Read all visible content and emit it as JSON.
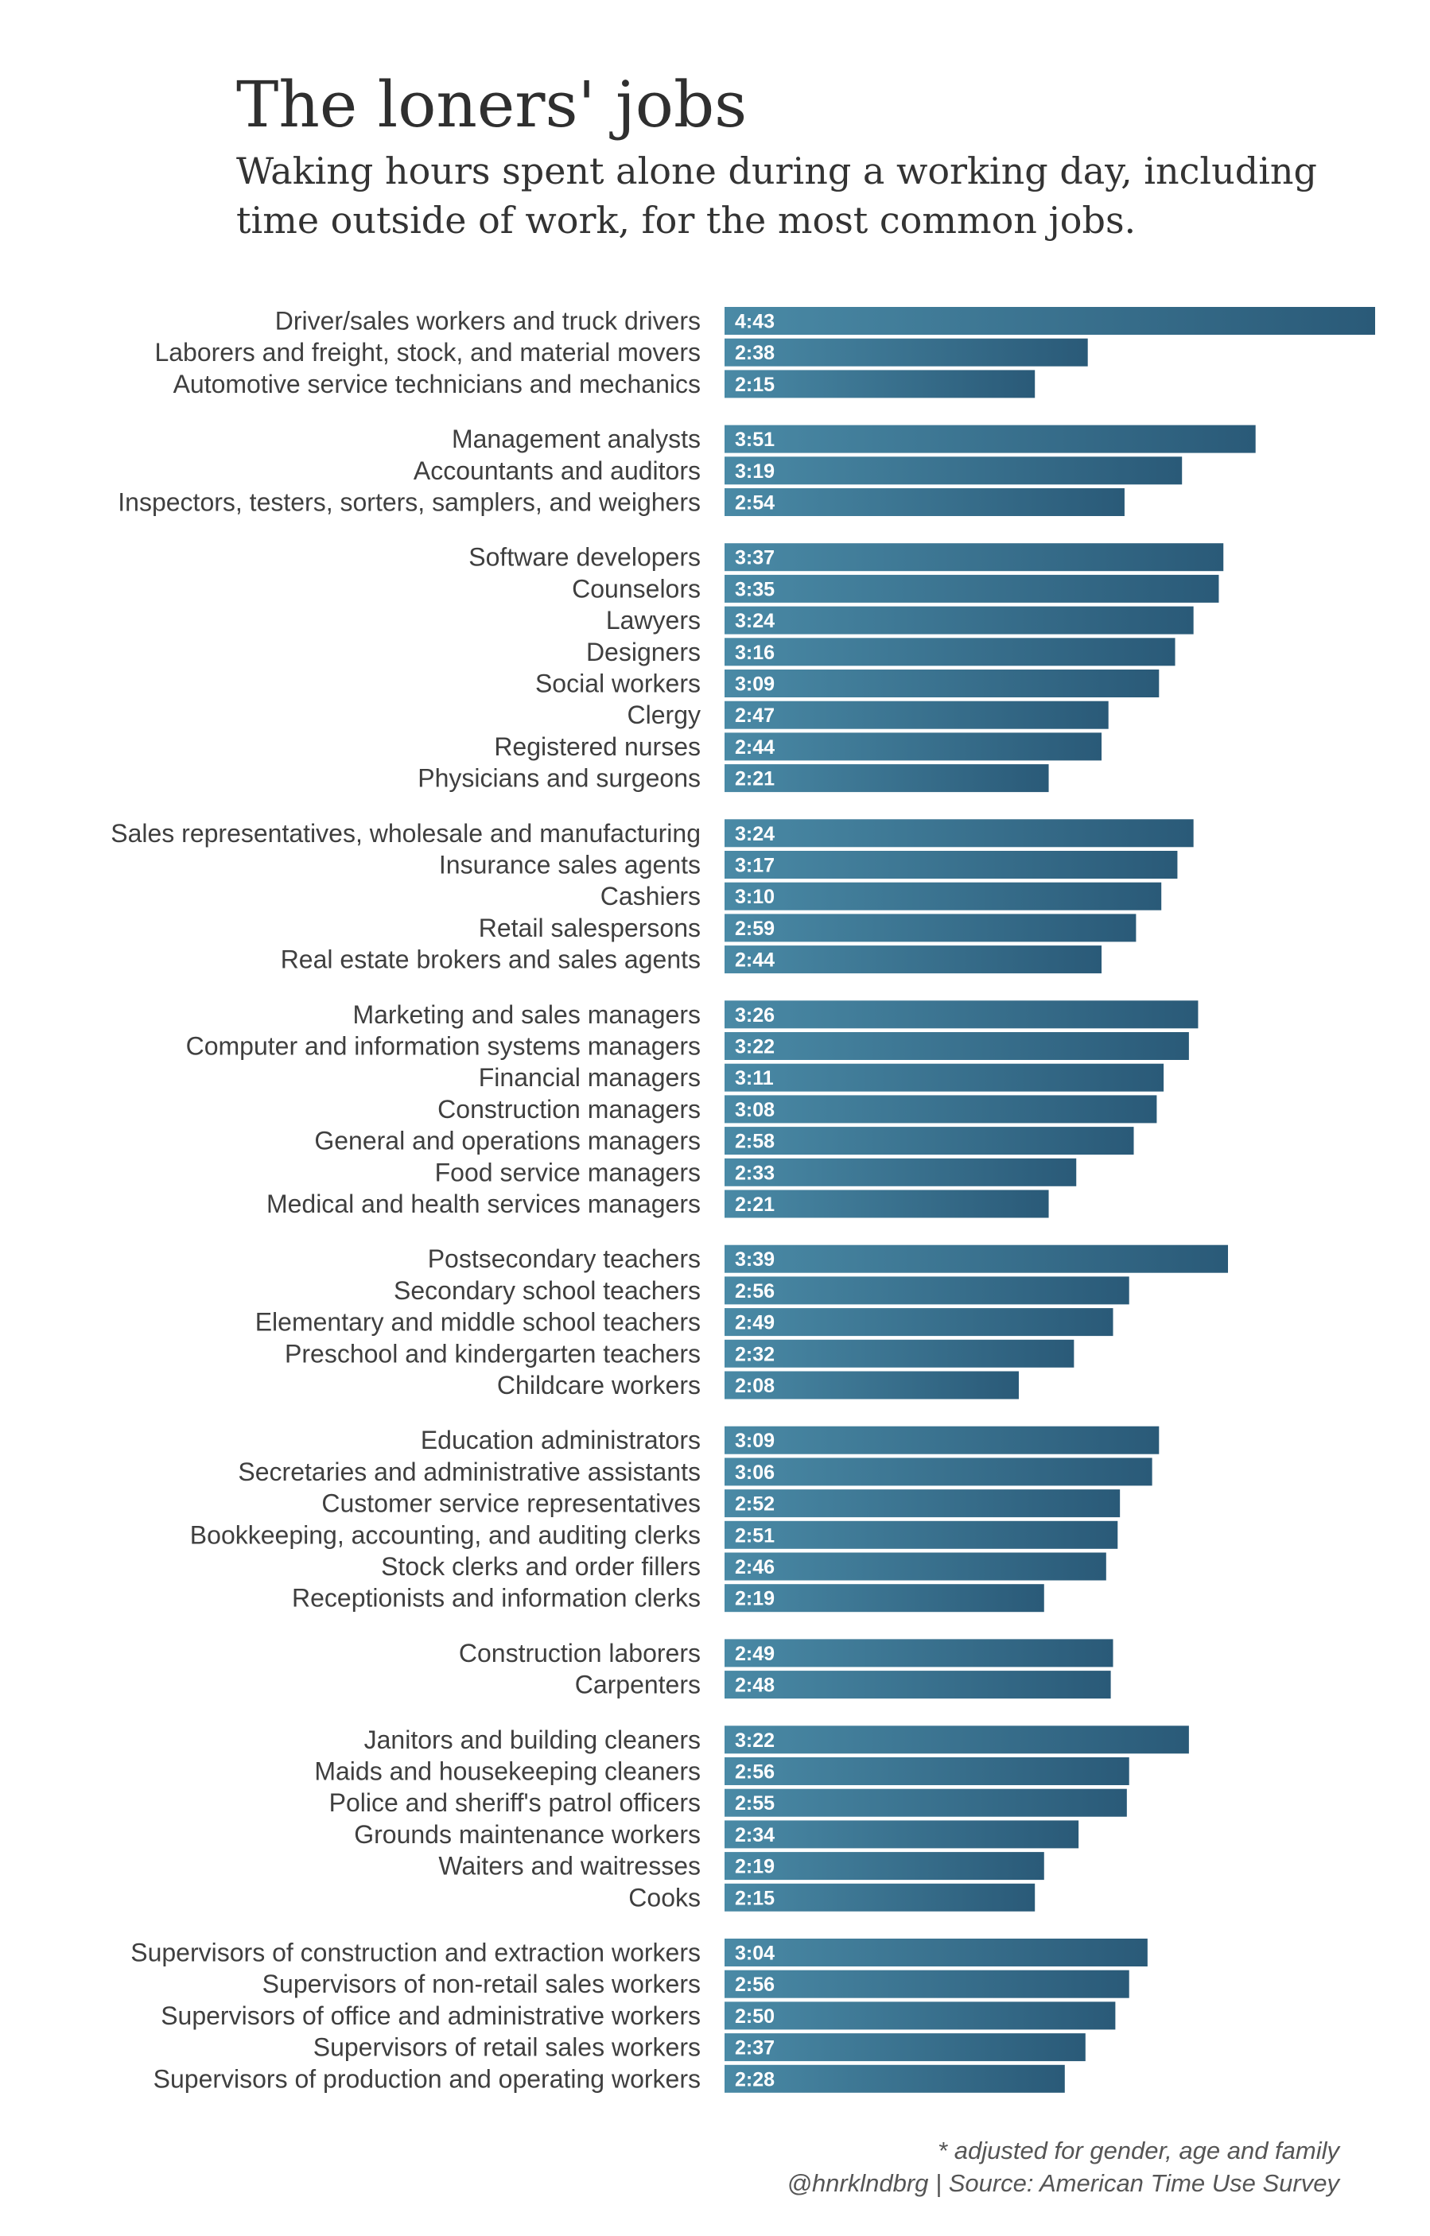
{
  "chart_data": {
    "type": "bar",
    "orientation": "horizontal",
    "title": "The loners' jobs",
    "subtitle": "Waking hours spent alone during a working day, including time outside of work, for the most common jobs.",
    "value_unit": "hours:minutes",
    "xlim": [
      0,
      283
    ],
    "colors": {
      "bar_start": "#4a8aa6",
      "bar_end": "#2a5a78",
      "label_text": "#3f3f3f",
      "value_text": "#ffffff"
    },
    "groups": [
      {
        "items": [
          {
            "label": "Driver/sales workers and truck drivers",
            "value": 283,
            "display": "4:43"
          },
          {
            "label": "Laborers and freight, stock, and material movers",
            "value": 158,
            "display": "2:38"
          },
          {
            "label": "Automotive service technicians and mechanics",
            "value": 135,
            "display": "2:15"
          }
        ]
      },
      {
        "items": [
          {
            "label": "Management analysts",
            "value": 231,
            "display": "3:51"
          },
          {
            "label": "Accountants and auditors",
            "value": 199,
            "display": "3:19"
          },
          {
            "label": "Inspectors, testers, sorters, samplers, and weighers",
            "value": 174,
            "display": "2:54"
          }
        ]
      },
      {
        "items": [
          {
            "label": "Software developers",
            "value": 217,
            "display": "3:37"
          },
          {
            "label": "Counselors",
            "value": 215,
            "display": "3:35"
          },
          {
            "label": "Lawyers",
            "value": 204,
            "display": "3:24"
          },
          {
            "label": "Designers",
            "value": 196,
            "display": "3:16"
          },
          {
            "label": "Social workers",
            "value": 189,
            "display": "3:09"
          },
          {
            "label": "Clergy",
            "value": 167,
            "display": "2:47"
          },
          {
            "label": "Registered nurses",
            "value": 164,
            "display": "2:44"
          },
          {
            "label": "Physicians and surgeons",
            "value": 141,
            "display": "2:21"
          }
        ]
      },
      {
        "items": [
          {
            "label": "Sales representatives, wholesale and manufacturing",
            "value": 204,
            "display": "3:24"
          },
          {
            "label": "Insurance sales agents",
            "value": 197,
            "display": "3:17"
          },
          {
            "label": "Cashiers",
            "value": 190,
            "display": "3:10"
          },
          {
            "label": "Retail salespersons",
            "value": 179,
            "display": "2:59"
          },
          {
            "label": "Real estate brokers and sales agents",
            "value": 164,
            "display": "2:44"
          }
        ]
      },
      {
        "items": [
          {
            "label": "Marketing and sales managers",
            "value": 206,
            "display": "3:26"
          },
          {
            "label": "Computer and information systems managers",
            "value": 202,
            "display": "3:22"
          },
          {
            "label": "Financial managers",
            "value": 191,
            "display": "3:11"
          },
          {
            "label": "Construction managers",
            "value": 188,
            "display": "3:08"
          },
          {
            "label": "General and operations managers",
            "value": 178,
            "display": "2:58"
          },
          {
            "label": "Food service managers",
            "value": 153,
            "display": "2:33"
          },
          {
            "label": "Medical and health services managers",
            "value": 141,
            "display": "2:21"
          }
        ]
      },
      {
        "items": [
          {
            "label": "Postsecondary teachers",
            "value": 219,
            "display": "3:39"
          },
          {
            "label": "Secondary school teachers",
            "value": 176,
            "display": "2:56"
          },
          {
            "label": "Elementary and middle school teachers",
            "value": 169,
            "display": "2:49"
          },
          {
            "label": "Preschool and kindergarten teachers",
            "value": 152,
            "display": "2:32"
          },
          {
            "label": "Childcare workers",
            "value": 128,
            "display": "2:08"
          }
        ]
      },
      {
        "items": [
          {
            "label": "Education administrators",
            "value": 189,
            "display": "3:09"
          },
          {
            "label": "Secretaries and administrative assistants",
            "value": 186,
            "display": "3:06"
          },
          {
            "label": "Customer service representatives",
            "value": 172,
            "display": "2:52"
          },
          {
            "label": "Bookkeeping, accounting, and auditing clerks",
            "value": 171,
            "display": "2:51"
          },
          {
            "label": "Stock clerks and order fillers",
            "value": 166,
            "display": "2:46"
          },
          {
            "label": "Receptionists and information clerks",
            "value": 139,
            "display": "2:19"
          }
        ]
      },
      {
        "items": [
          {
            "label": "Construction laborers",
            "value": 169,
            "display": "2:49"
          },
          {
            "label": "Carpenters",
            "value": 168,
            "display": "2:48"
          }
        ]
      },
      {
        "items": [
          {
            "label": "Janitors and building cleaners",
            "value": 202,
            "display": "3:22"
          },
          {
            "label": "Maids and housekeeping cleaners",
            "value": 176,
            "display": "2:56"
          },
          {
            "label": "Police and sheriff's patrol officers",
            "value": 175,
            "display": "2:55"
          },
          {
            "label": "Grounds maintenance workers",
            "value": 154,
            "display": "2:34"
          },
          {
            "label": "Waiters and waitresses",
            "value": 139,
            "display": "2:19"
          },
          {
            "label": "Cooks",
            "value": 135,
            "display": "2:15"
          }
        ]
      },
      {
        "items": [
          {
            "label": "Supervisors of construction and extraction workers",
            "value": 184,
            "display": "3:04"
          },
          {
            "label": "Supervisors of non-retail sales workers",
            "value": 176,
            "display": "2:56"
          },
          {
            "label": "Supervisors of office and administrative workers",
            "value": 170,
            "display": "2:50"
          },
          {
            "label": "Supervisors of retail sales workers",
            "value": 157,
            "display": "2:37"
          },
          {
            "label": "Supervisors of production and operating workers",
            "value": 148,
            "display": "2:28"
          }
        ]
      }
    ],
    "footnote": "* adjusted for gender, age and family",
    "source": "@hnrklndbrg | Source: American Time Use Survey"
  }
}
